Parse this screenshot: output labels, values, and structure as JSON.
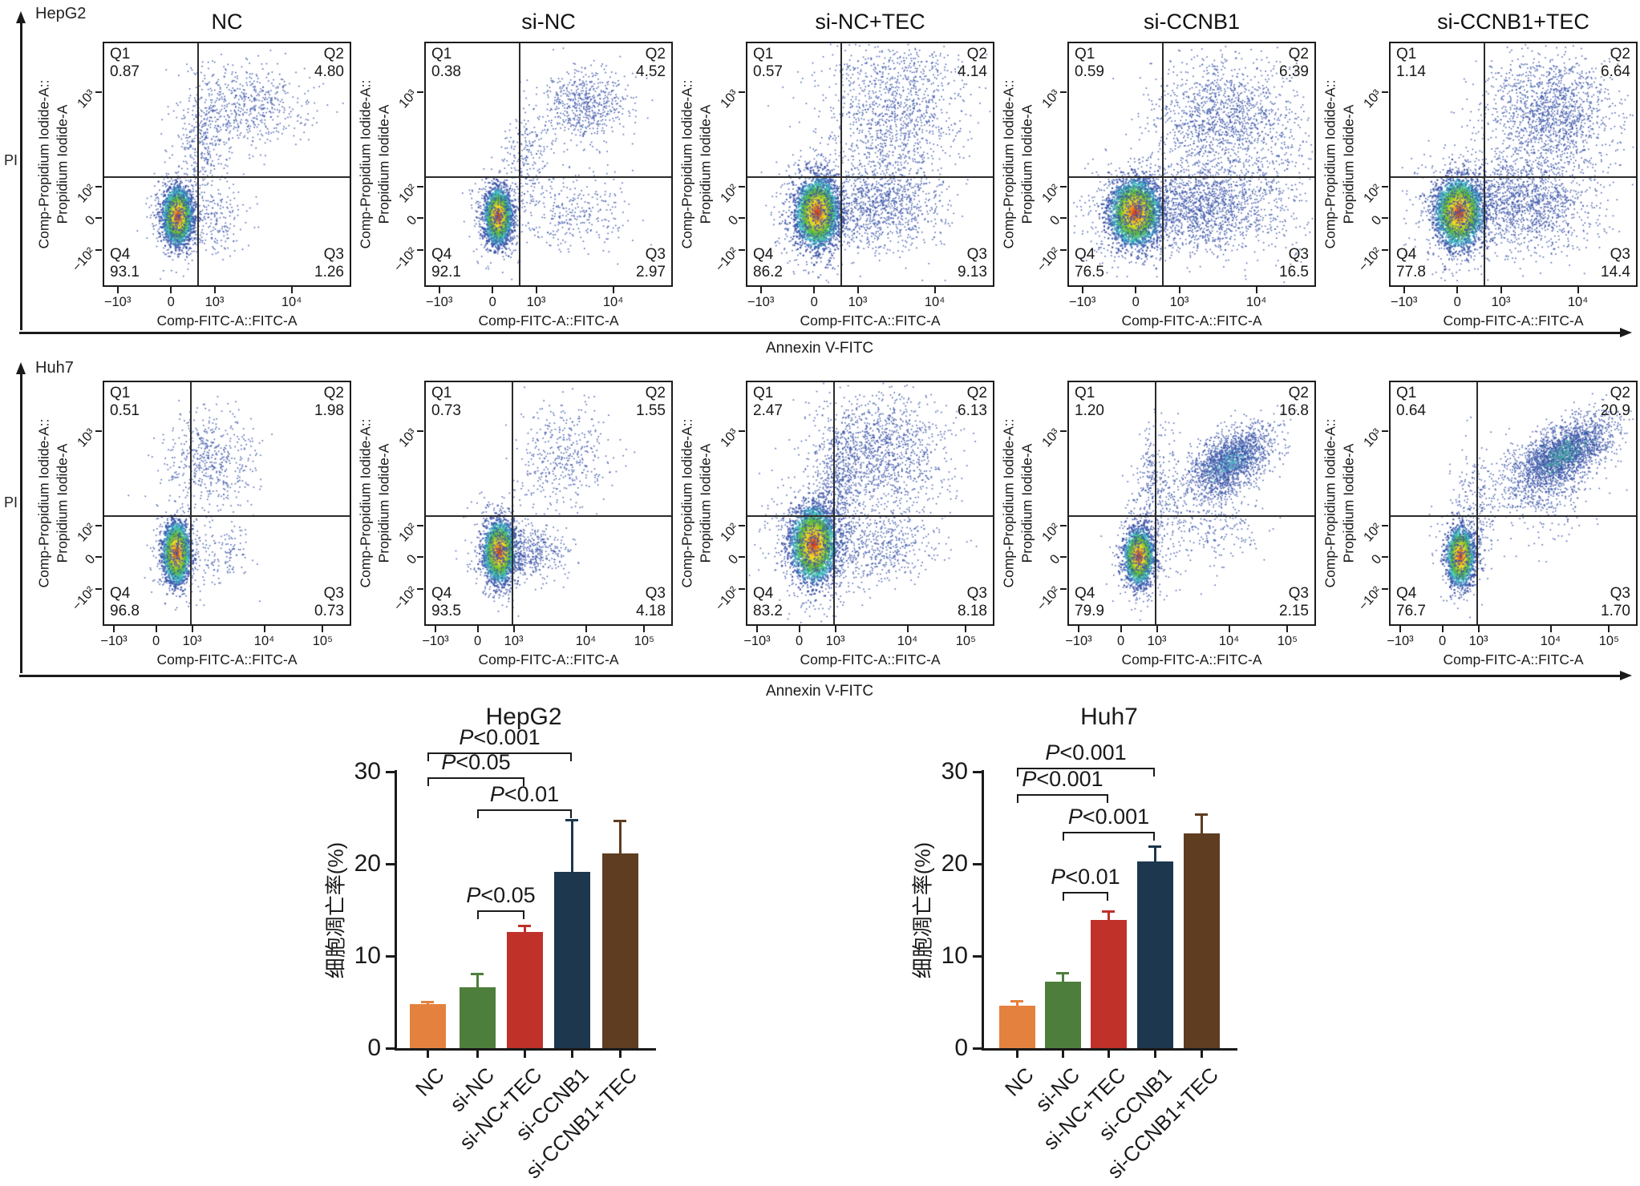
{
  "flow": {
    "outer_y_label": "PI",
    "outer_x_label": "Annexin V-FITC",
    "y_axis_label_line1": "Comp-Propidium Iodide-A::",
    "y_axis_label_line2": "Propidium Iodide-A",
    "x_axis_label": "Comp-FITC-A::FITC-A",
    "y_ticks": [
      "10³",
      "10²",
      "0",
      "−10²"
    ],
    "quadrant_names": {
      "q1": "Q1",
      "q2": "Q2",
      "q3": "Q3",
      "q4": "Q4"
    }
  },
  "colors": {
    "dot_blue": "#3b54a8",
    "bar_orange": "#E4813E",
    "bar_green": "#4E7E3C",
    "bar_red": "#BF3129",
    "bar_navy": "#1C374E",
    "bar_brown": "#5E3D20",
    "axis_black": "#1a1a1a"
  },
  "chart_data": [
    {
      "type": "scatter",
      "panel": "flow-row",
      "cell_line": "HepG2",
      "x_ticks": [
        "−10³",
        "0",
        "10³",
        "10⁴"
      ],
      "plots": [
        {
          "condition": "NC",
          "quadrants": {
            "q1": "0.87",
            "q2": "4.80",
            "q3": "1.26",
            "q4": "93.1"
          },
          "clusters": [
            {
              "k": "d",
              "x": 0.3,
              "y": 0.715,
              "sx": 0.026,
              "sy": 0.052,
              "n": 2600
            },
            {
              "k": "s",
              "x": 0.3,
              "y": 0.715,
              "sx": 0.05,
              "sy": 0.09,
              "n": 650
            },
            {
              "k": "s",
              "x": 0.4,
              "y": 0.4,
              "sx": 0.055,
              "sy": 0.13,
              "n": 380
            },
            {
              "k": "s",
              "x": 0.6,
              "y": 0.26,
              "sx": 0.115,
              "sy": 0.08,
              "n": 520
            },
            {
              "k": "s",
              "x": 0.47,
              "y": 0.74,
              "sx": 0.055,
              "sy": 0.07,
              "n": 160
            }
          ]
        },
        {
          "condition": "si-NC",
          "quadrants": {
            "q1": "0.38",
            "q2": "4.52",
            "q3": "2.97",
            "q4": "92.1"
          },
          "clusters": [
            {
              "k": "d",
              "x": 0.295,
              "y": 0.715,
              "sx": 0.024,
              "sy": 0.05,
              "n": 2400
            },
            {
              "k": "s",
              "x": 0.295,
              "y": 0.715,
              "sx": 0.048,
              "sy": 0.088,
              "n": 550
            },
            {
              "k": "s",
              "x": 0.42,
              "y": 0.47,
              "sx": 0.05,
              "sy": 0.1,
              "n": 230
            },
            {
              "k": "s",
              "x": 0.66,
              "y": 0.25,
              "sx": 0.09,
              "sy": 0.075,
              "n": 600
            },
            {
              "k": "s",
              "x": 0.6,
              "y": 0.7,
              "sx": 0.12,
              "sy": 0.08,
              "n": 300
            }
          ]
        },
        {
          "condition": "si-NC+TEC",
          "quadrants": {
            "q1": "0.57",
            "q2": "4.14",
            "q3": "9.13",
            "q4": "86.2"
          },
          "clusters": [
            {
              "k": "d",
              "x": 0.285,
              "y": 0.7,
              "sx": 0.038,
              "sy": 0.062,
              "n": 3100
            },
            {
              "k": "s",
              "x": 0.285,
              "y": 0.7,
              "sx": 0.075,
              "sy": 0.11,
              "n": 850
            },
            {
              "k": "s",
              "x": 0.54,
              "y": 0.67,
              "sx": 0.13,
              "sy": 0.095,
              "n": 1100
            },
            {
              "k": "s",
              "x": 0.6,
              "y": 0.31,
              "sx": 0.14,
              "sy": 0.13,
              "n": 1000
            },
            {
              "k": "s",
              "x": 0.57,
              "y": 0.1,
              "sx": 0.16,
              "sy": 0.055,
              "n": 180
            }
          ]
        },
        {
          "condition": "si-CCNB1",
          "quadrants": {
            "q1": "0.59",
            "q2": "6.39",
            "q3": "16.5",
            "q4": "76.5"
          },
          "clusters": [
            {
              "k": "d",
              "x": 0.27,
              "y": 0.7,
              "sx": 0.045,
              "sy": 0.06,
              "n": 3000
            },
            {
              "k": "s",
              "x": 0.27,
              "y": 0.7,
              "sx": 0.09,
              "sy": 0.1,
              "n": 950
            },
            {
              "k": "s",
              "x": 0.55,
              "y": 0.68,
              "sx": 0.145,
              "sy": 0.09,
              "n": 1500
            },
            {
              "k": "s",
              "x": 0.62,
              "y": 0.31,
              "sx": 0.135,
              "sy": 0.125,
              "n": 1300
            },
            {
              "k": "s",
              "x": 0.86,
              "y": 0.5,
              "sx": 0.075,
              "sy": 0.19,
              "n": 260
            }
          ]
        },
        {
          "condition": "si-CCNB1+TEC",
          "quadrants": {
            "q1": "1.14",
            "q2": "6.64",
            "q3": "14.4",
            "q4": "77.8"
          },
          "clusters": [
            {
              "k": "d",
              "x": 0.28,
              "y": 0.7,
              "sx": 0.042,
              "sy": 0.062,
              "n": 2900
            },
            {
              "k": "s",
              "x": 0.28,
              "y": 0.7,
              "sx": 0.085,
              "sy": 0.105,
              "n": 950
            },
            {
              "k": "s",
              "x": 0.56,
              "y": 0.66,
              "sx": 0.13,
              "sy": 0.1,
              "n": 1400
            },
            {
              "k": "s",
              "x": 0.65,
              "y": 0.29,
              "sx": 0.13,
              "sy": 0.12,
              "n": 1500
            }
          ]
        }
      ]
    },
    {
      "type": "scatter",
      "panel": "flow-row",
      "cell_line": "Huh7",
      "x_ticks": [
        "−10³",
        "0",
        "10³",
        "10⁴",
        "10⁵"
      ],
      "plots": [
        {
          "condition": "NC",
          "quadrants": {
            "q1": "0.51",
            "q2": "1.98",
            "q3": "0.73",
            "q4": "96.8"
          },
          "clusters": [
            {
              "k": "d",
              "x": 0.295,
              "y": 0.705,
              "sx": 0.024,
              "sy": 0.055,
              "n": 2300
            },
            {
              "k": "s",
              "x": 0.295,
              "y": 0.705,
              "sx": 0.045,
              "sy": 0.09,
              "n": 480
            },
            {
              "k": "s",
              "x": 0.43,
              "y": 0.33,
              "sx": 0.09,
              "sy": 0.1,
              "n": 520
            },
            {
              "k": "s",
              "x": 0.48,
              "y": 0.7,
              "sx": 0.06,
              "sy": 0.06,
              "n": 130
            }
          ]
        },
        {
          "condition": "si-NC",
          "quadrants": {
            "q1": "0.73",
            "q2": "1.55",
            "q3": "4.18",
            "q4": "93.5"
          },
          "clusters": [
            {
              "k": "d",
              "x": 0.3,
              "y": 0.7,
              "sx": 0.028,
              "sy": 0.055,
              "n": 2400
            },
            {
              "k": "s",
              "x": 0.3,
              "y": 0.7,
              "sx": 0.055,
              "sy": 0.095,
              "n": 600
            },
            {
              "k": "s",
              "x": 0.44,
              "y": 0.7,
              "sx": 0.075,
              "sy": 0.055,
              "n": 380
            },
            {
              "k": "s",
              "x": 0.56,
              "y": 0.31,
              "sx": 0.1,
              "sy": 0.115,
              "n": 420
            }
          ]
        },
        {
          "condition": "si-NC+TEC",
          "quadrants": {
            "q1": "2.47",
            "q2": "6.13",
            "q3": "8.18",
            "q4": "83.2"
          },
          "clusters": [
            {
              "k": "d",
              "x": 0.27,
              "y": 0.67,
              "sx": 0.04,
              "sy": 0.068,
              "n": 3000
            },
            {
              "k": "s",
              "x": 0.27,
              "y": 0.67,
              "sx": 0.08,
              "sy": 0.12,
              "n": 900
            },
            {
              "k": "s",
              "x": 0.37,
              "y": 0.44,
              "sx": 0.05,
              "sy": 0.15,
              "n": 600
            },
            {
              "k": "s",
              "x": 0.55,
              "y": 0.29,
              "sx": 0.13,
              "sy": 0.12,
              "n": 1200
            },
            {
              "k": "s",
              "x": 0.54,
              "y": 0.68,
              "sx": 0.12,
              "sy": 0.075,
              "n": 520
            }
          ]
        },
        {
          "condition": "si-CCNB1",
          "quadrants": {
            "q1": "1.20",
            "q2": "16.8",
            "q3": "2.15",
            "q4": "79.9"
          },
          "clusters": [
            {
              "k": "d",
              "x": 0.285,
              "y": 0.72,
              "sx": 0.026,
              "sy": 0.05,
              "n": 2200
            },
            {
              "k": "s",
              "x": 0.285,
              "y": 0.72,
              "sx": 0.05,
              "sy": 0.085,
              "n": 480
            },
            {
              "k": "s",
              "x": 0.35,
              "y": 0.45,
              "sx": 0.045,
              "sy": 0.15,
              "n": 380
            },
            {
              "k": "s",
              "x": 0.655,
              "y": 0.33,
              "sx": 0.1,
              "sy": 0.055,
              "rot": -35,
              "n": 1900
            },
            {
              "k": "s",
              "x": 0.655,
              "y": 0.33,
              "sx": 0.045,
              "sy": 0.022,
              "rot": -35,
              "n": 150,
              "color": "#54b8c8"
            },
            {
              "k": "s",
              "x": 0.58,
              "y": 0.58,
              "sx": 0.1,
              "sy": 0.09,
              "n": 280
            }
          ]
        },
        {
          "condition": "si-CCNB1+TEC",
          "quadrants": {
            "q1": "0.64",
            "q2": "20.9",
            "q3": "1.70",
            "q4": "76.7"
          },
          "clusters": [
            {
              "k": "d",
              "x": 0.285,
              "y": 0.72,
              "sx": 0.024,
              "sy": 0.052,
              "n": 2000
            },
            {
              "k": "s",
              "x": 0.285,
              "y": 0.72,
              "sx": 0.045,
              "sy": 0.085,
              "n": 420
            },
            {
              "k": "s",
              "x": 0.34,
              "y": 0.52,
              "sx": 0.04,
              "sy": 0.12,
              "n": 220
            },
            {
              "k": "s",
              "x": 0.7,
              "y": 0.3,
              "sx": 0.115,
              "sy": 0.055,
              "rot": -33,
              "n": 2400
            },
            {
              "k": "s",
              "x": 0.7,
              "y": 0.3,
              "sx": 0.05,
              "sy": 0.025,
              "rot": -33,
              "n": 220,
              "color": "#3fae9e"
            },
            {
              "k": "s",
              "x": 0.6,
              "y": 0.45,
              "sx": 0.12,
              "sy": 0.1,
              "n": 350
            }
          ]
        }
      ]
    },
    {
      "type": "bar",
      "title": "HepG2",
      "ylabel": "细胞凋亡率(%)",
      "categories": [
        "NC",
        "si-NC",
        "si-NC+TEC",
        "si-CCNB1",
        "si-CCNB1+TEC"
      ],
      "values": [
        4.8,
        6.6,
        12.6,
        19.1,
        21.1
      ],
      "errors": [
        0.3,
        1.6,
        0.8,
        5.8,
        3.7
      ],
      "bar_colors": [
        "#E4813E",
        "#4E7E3C",
        "#BF3129",
        "#1C374E",
        "#5E3D20"
      ],
      "ylim": [
        0,
        30
      ],
      "yticks": [
        "0",
        "10",
        "20",
        "30"
      ],
      "significance": [
        {
          "from": 0,
          "to": 3,
          "y": 32.1,
          "label": "P<0.001"
        },
        {
          "from": 0,
          "to": 2,
          "y": 29.4,
          "label": "P<0.05"
        },
        {
          "from": 1,
          "to": 3,
          "y": 25.9,
          "label": "P<0.01"
        },
        {
          "from": 1,
          "to": 2,
          "y": 15.0,
          "label": "P<0.05"
        }
      ]
    },
    {
      "type": "bar",
      "title": "Huh7",
      "ylabel": "细胞凋亡率(%)",
      "categories": [
        "NC",
        "si-NC",
        "si-NC+TEC",
        "si-CCNB1",
        "si-CCNB1+TEC"
      ],
      "values": [
        4.6,
        7.2,
        13.9,
        20.3,
        23.3
      ],
      "errors": [
        0.6,
        1.1,
        1.1,
        1.7,
        2.2
      ],
      "bar_colors": [
        "#E4813E",
        "#4E7E3C",
        "#BF3129",
        "#1C374E",
        "#5E3D20"
      ],
      "ylim": [
        0,
        30
      ],
      "yticks": [
        "0",
        "10",
        "20",
        "30"
      ],
      "significance": [
        {
          "from": 0,
          "to": 3,
          "y": 30.4,
          "label": "P<0.001"
        },
        {
          "from": 0,
          "to": 2,
          "y": 27.6,
          "label": "P<0.001"
        },
        {
          "from": 1,
          "to": 3,
          "y": 23.5,
          "label": "P<0.001"
        },
        {
          "from": 1,
          "to": 2,
          "y": 17.0,
          "label": "P<0.01"
        }
      ]
    }
  ]
}
